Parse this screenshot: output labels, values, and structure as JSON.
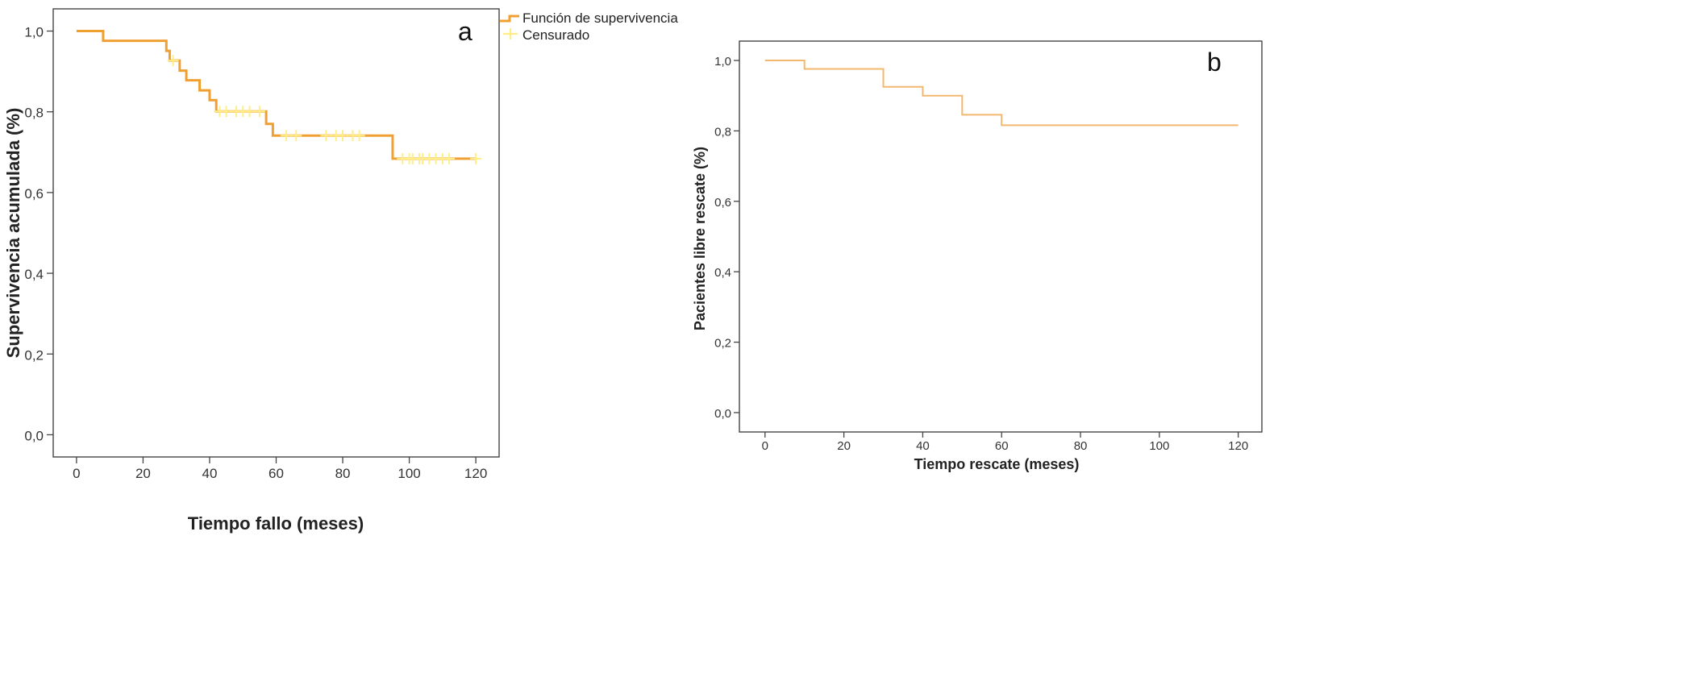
{
  "chart_data": [
    {
      "type": "line",
      "panel_label": "a",
      "xlabel": "Tiempo fallo (meses)",
      "ylabel": "Supervivencia acumulada (%)",
      "xlim": [
        -7,
        127
      ],
      "ylim": [
        -0.055,
        1.055
      ],
      "xticks": [
        0,
        20,
        40,
        60,
        80,
        100,
        120
      ],
      "xtick_labels": [
        "0",
        "20",
        "40",
        "60",
        "80",
        "100",
        "120"
      ],
      "yticks": [
        0.0,
        0.2,
        0.4,
        0.6,
        0.8,
        1.0
      ],
      "ytick_labels": [
        "0,0",
        "0,2",
        "0,4",
        "0,6",
        "0,8",
        "1,0"
      ],
      "grid": false,
      "legend_position": "top-right outside",
      "series": [
        {
          "name": "Función de supervivencia",
          "color": "#f0a030",
          "step": true,
          "points": [
            [
              0,
              1.0
            ],
            [
              8,
              1.0
            ],
            [
              8,
              0.976
            ],
            [
              27,
              0.976
            ],
            [
              27,
              0.951
            ],
            [
              28,
              0.951
            ],
            [
              28,
              0.927
            ],
            [
              30,
              0.927
            ],
            [
              30,
              0.927
            ],
            [
              31,
              0.927
            ],
            [
              31,
              0.902
            ],
            [
              33,
              0.902
            ],
            [
              33,
              0.878
            ],
            [
              37,
              0.878
            ],
            [
              37,
              0.853
            ],
            [
              40,
              0.853
            ],
            [
              40,
              0.829
            ],
            [
              42,
              0.829
            ],
            [
              42,
              0.801
            ],
            [
              57,
              0.801
            ],
            [
              57,
              0.77
            ],
            [
              59,
              0.77
            ],
            [
              59,
              0.741
            ],
            [
              95,
              0.741
            ],
            [
              95,
              0.684
            ],
            [
              120,
              0.684
            ]
          ]
        },
        {
          "name": "Censurado",
          "color": "#ffee88",
          "marker": "+",
          "points": [
            [
              29,
              0.927
            ],
            [
              43,
              0.801
            ],
            [
              45,
              0.801
            ],
            [
              48,
              0.801
            ],
            [
              50,
              0.801
            ],
            [
              52,
              0.801
            ],
            [
              55,
              0.801
            ],
            [
              63,
              0.741
            ],
            [
              66,
              0.741
            ],
            [
              75,
              0.741
            ],
            [
              78,
              0.741
            ],
            [
              80,
              0.741
            ],
            [
              83,
              0.741
            ],
            [
              85,
              0.741
            ],
            [
              98,
              0.684
            ],
            [
              100,
              0.684
            ],
            [
              101,
              0.684
            ],
            [
              103,
              0.684
            ],
            [
              104,
              0.684
            ],
            [
              106,
              0.684
            ],
            [
              108,
              0.684
            ],
            [
              110,
              0.684
            ],
            [
              112,
              0.684
            ],
            [
              120,
              0.684
            ]
          ]
        }
      ]
    },
    {
      "type": "line",
      "panel_label": "b",
      "xlabel": "Tiempo rescate (meses)",
      "ylabel": "Pacientes libre rescate (%)",
      "xlim": [
        -6.5,
        126
      ],
      "ylim": [
        -0.055,
        1.055
      ],
      "xticks": [
        0,
        20,
        40,
        60,
        80,
        100,
        120
      ],
      "xtick_labels": [
        "0",
        "20",
        "40",
        "60",
        "80",
        "100",
        "120"
      ],
      "yticks": [
        0.0,
        0.2,
        0.4,
        0.6,
        0.8,
        1.0
      ],
      "ytick_labels": [
        "0,0",
        "0,2",
        "0,4",
        "0,6",
        "0,8",
        "1,0"
      ],
      "grid": false,
      "series": [
        {
          "color": "#f2b870",
          "step": true,
          "points": [
            [
              0,
              1.0
            ],
            [
              10,
              1.0
            ],
            [
              10,
              0.976
            ],
            [
              30,
              0.976
            ],
            [
              30,
              0.925
            ],
            [
              40,
              0.925
            ],
            [
              40,
              0.9
            ],
            [
              50,
              0.9
            ],
            [
              50,
              0.846
            ],
            [
              60,
              0.846
            ],
            [
              60,
              0.816
            ],
            [
              120,
              0.816
            ]
          ]
        }
      ]
    }
  ]
}
